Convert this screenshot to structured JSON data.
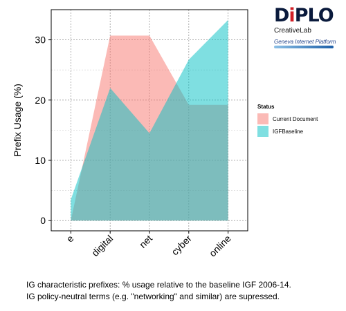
{
  "chart_data": {
    "type": "area",
    "categories": [
      "e",
      "digital",
      "net",
      "cyber",
      "online"
    ],
    "series": [
      {
        "name": "Current Document",
        "values": [
          0,
          30.7,
          30.7,
          19.2,
          19.2
        ],
        "color": "#F8766D"
      },
      {
        "name": "IGFBaseline",
        "values": [
          3.5,
          22.0,
          14.5,
          26.7,
          33.3
        ],
        "color": "#00BFC4"
      }
    ],
    "ylabel": "Prefix Usage (%)",
    "ylim": [
      -1.7,
      35
    ],
    "yticks": [
      0,
      10,
      20,
      30
    ],
    "grid": true,
    "legend": {
      "title": "Status",
      "position": "right"
    }
  },
  "logo": {
    "mark_start": "D",
    "mark_accent": "i",
    "mark_end": "PLO",
    "subtitle": "CreativeLab",
    "partner": "Geneva Internet Platform"
  },
  "caption": {
    "line1": "IG characteristic prefixes: % usage relative to the baseline IGF 2006-14.",
    "line2": "IG policy-neutral terms (e.g. \"networking\" and similar) are supressed."
  }
}
